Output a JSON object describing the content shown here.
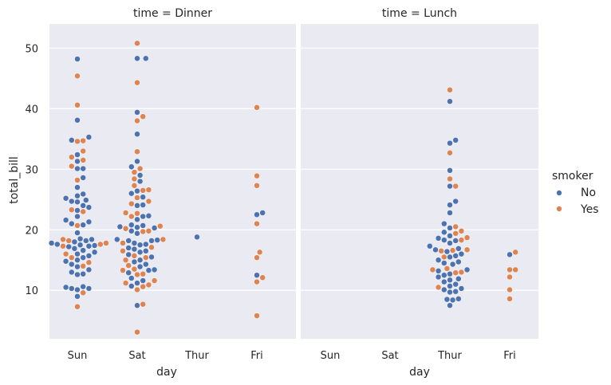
{
  "chart_data": {
    "type": "scatter",
    "subtype": "swarm",
    "categories": [
      "Sun",
      "Sat",
      "Thur",
      "Fri"
    ],
    "xlabel": "day",
    "ylabel": "total_bill",
    "ylim": [
      2,
      54
    ],
    "yticks": [
      10,
      20,
      30,
      40,
      50
    ],
    "grid": true,
    "legend_title": "smoker",
    "legend_position": "right",
    "colors": {
      "No": "#4c72b0",
      "Yes": "#dd8452",
      "panel_bg": "#eaeaf2",
      "grid": "#ffffff"
    },
    "panels": [
      {
        "title": "time = Dinner",
        "series": [
          {
            "name": "No",
            "points": {
              "Sun": [
                48.2,
                38.1,
                35.3,
                34.8,
                32.4,
                31.3,
                30.1,
                30.1,
                28.6,
                27.0,
                25.9,
                25.6,
                25.2,
                24.9,
                24.7,
                24.6,
                24.0,
                23.7,
                23.2,
                22.2,
                21.6,
                21.3,
                21.0,
                20.8,
                19.5,
                18.5,
                18.4,
                18.2,
                18.0,
                17.8,
                17.6,
                17.5,
                17.4,
                17.3,
                17.2,
                16.9,
                16.6,
                16.3,
                16.0,
                15.7,
                15.4,
                15.0,
                14.8,
                14.3,
                13.9,
                13.4,
                13.0,
                12.7,
                12.6,
                10.6,
                10.5,
                10.3,
                10.3,
                10.1,
                9.0
              ],
              "Sat": [
                48.3,
                48.3,
                39.4,
                35.8,
                31.3,
                30.4,
                29.0,
                28.0,
                26.4,
                26.0,
                25.4,
                24.1,
                24.0,
                22.3,
                22.2,
                21.7,
                20.8,
                20.7,
                20.5,
                20.4,
                20.3,
                19.8,
                19.4,
                18.4,
                18.3,
                18.2,
                18.2,
                17.8,
                17.6,
                17.5,
                17.0,
                16.8,
                16.5,
                16.3,
                15.9,
                15.5,
                15.0,
                14.7,
                14.3,
                13.9,
                13.4,
                13.3,
                12.9,
                12.0,
                11.6,
                11.2,
                10.7,
                7.5
              ],
              "Thur": [
                18.8
              ],
              "Fri": [
                22.8,
                22.5,
                12.5
              ]
            }
          },
          {
            "name": "Yes",
            "points": {
              "Sun": [
                45.4,
                40.6,
                34.7,
                34.6,
                33.0,
                32.0,
                31.5,
                30.5,
                28.2,
                23.3,
                23.0,
                20.7,
                18.4,
                18.2,
                17.8,
                17.6,
                17.3,
                16.0,
                15.4,
                14.6,
                14.0,
                9.6,
                7.3
              ],
              "Sat": [
                50.8,
                44.3,
                38.7,
                38.0,
                32.9,
                30.1,
                29.5,
                28.4,
                27.3,
                26.6,
                26.5,
                25.3,
                24.7,
                24.3,
                22.8,
                22.7,
                22.2,
                20.6,
                20.2,
                19.8,
                19.7,
                18.4,
                17.8,
                17.1,
                16.5,
                15.7,
                15.4,
                15.0,
                14.1,
                13.5,
                13.3,
                12.7,
                12.6,
                11.6,
                11.2,
                10.9,
                10.6,
                10.1,
                7.7,
                3.1
              ],
              "Thur": [],
              "Fri": [
                40.2,
                28.9,
                27.3,
                21.0,
                16.3,
                15.4,
                12.1,
                11.4,
                5.8
              ]
            }
          }
        ]
      },
      {
        "title": "time = Lunch",
        "series": [
          {
            "name": "No",
            "points": {
              "Sun": [],
              "Sat": [],
              "Thur": [
                41.2,
                34.8,
                34.3,
                29.8,
                27.2,
                24.7,
                24.1,
                22.8,
                21.0,
                20.3,
                19.6,
                19.0,
                18.6,
                18.3,
                18.2,
                17.8,
                17.3,
                16.9,
                16.7,
                16.4,
                16.0,
                15.7,
                15.5,
                15.0,
                14.7,
                14.5,
                14.3,
                13.4,
                13.2,
                12.7,
                12.5,
                12.2,
                11.9,
                11.7,
                11.4,
                11.0,
                10.7,
                10.3,
                10.1,
                9.8,
                9.7,
                8.6,
                8.5,
                8.4,
                7.5
              ],
              "Fri": [
                15.9
              ]
            }
          },
          {
            "name": "Yes",
            "points": {
              "Sun": [],
              "Sat": [],
              "Thur": [
                43.1,
                32.7,
                28.4,
                27.2,
                20.5,
                19.8,
                19.4,
                18.7,
                18.3,
                16.7,
                16.6,
                16.5,
                15.5,
                13.6,
                13.4,
                13.0,
                12.9,
                10.5
              ],
              "Fri": [
                16.3,
                13.4,
                13.4,
                12.2,
                10.1,
                8.6
              ]
            }
          }
        ]
      }
    ]
  }
}
